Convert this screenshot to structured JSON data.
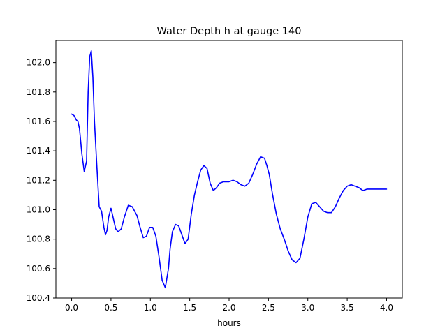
{
  "chart_data": {
    "type": "line",
    "title": "Water Depth h at gauge 140",
    "xlabel": "hours",
    "ylabel": "",
    "xlim": [
      -0.2,
      4.2
    ],
    "ylim": [
      100.4,
      102.15
    ],
    "x_ticks": [
      0.0,
      0.5,
      1.0,
      1.5,
      2.0,
      2.5,
      3.0,
      3.5,
      4.0
    ],
    "x_tick_labels": [
      "0.0",
      "0.5",
      "1.0",
      "1.5",
      "2.0",
      "2.5",
      "3.0",
      "3.5",
      "4.0"
    ],
    "y_ticks": [
      100.4,
      100.6,
      100.8,
      101.0,
      101.2,
      101.4,
      101.6,
      101.8,
      102.0
    ],
    "y_tick_labels": [
      "100.4",
      "100.6",
      "100.8",
      "101.0",
      "101.2",
      "101.4",
      "101.6",
      "101.8",
      "102.0"
    ],
    "grid": false,
    "series": [
      {
        "color": "#0000ff",
        "x": [
          0.0,
          0.03,
          0.06,
          0.08,
          0.1,
          0.13,
          0.16,
          0.19,
          0.21,
          0.23,
          0.25,
          0.27,
          0.29,
          0.32,
          0.35,
          0.38,
          0.41,
          0.43,
          0.45,
          0.47,
          0.5,
          0.53,
          0.56,
          0.59,
          0.63,
          0.67,
          0.72,
          0.77,
          0.8,
          0.83,
          0.87,
          0.91,
          0.95,
          0.99,
          1.03,
          1.07,
          1.11,
          1.15,
          1.19,
          1.23,
          1.25,
          1.28,
          1.32,
          1.36,
          1.4,
          1.44,
          1.48,
          1.52,
          1.56,
          1.6,
          1.64,
          1.68,
          1.72,
          1.76,
          1.8,
          1.84,
          1.88,
          1.93,
          2.0,
          2.05,
          2.1,
          2.15,
          2.2,
          2.25,
          2.3,
          2.35,
          2.4,
          2.45,
          2.48,
          2.51,
          2.55,
          2.6,
          2.65,
          2.7,
          2.75,
          2.8,
          2.85,
          2.9,
          2.95,
          3.0,
          3.05,
          3.1,
          3.15,
          3.2,
          3.25,
          3.3,
          3.35,
          3.4,
          3.45,
          3.5,
          3.55,
          3.6,
          3.65,
          3.7,
          3.75,
          3.8,
          3.85,
          3.9,
          3.95,
          4.0
        ],
        "y": [
          101.65,
          101.64,
          101.61,
          101.6,
          101.55,
          101.38,
          101.26,
          101.33,
          101.8,
          102.04,
          102.08,
          101.9,
          101.6,
          101.3,
          101.02,
          100.99,
          100.88,
          100.83,
          100.86,
          100.95,
          101.01,
          100.94,
          100.87,
          100.85,
          100.87,
          100.95,
          101.03,
          101.02,
          100.99,
          100.96,
          100.88,
          100.81,
          100.82,
          100.88,
          100.88,
          100.82,
          100.68,
          100.52,
          100.47,
          100.6,
          100.73,
          100.85,
          100.9,
          100.89,
          100.83,
          100.77,
          100.8,
          100.97,
          101.1,
          101.19,
          101.27,
          101.3,
          101.28,
          101.18,
          101.13,
          101.15,
          101.18,
          101.19,
          101.19,
          101.2,
          101.19,
          101.17,
          101.16,
          101.18,
          101.24,
          101.31,
          101.36,
          101.35,
          101.3,
          101.24,
          101.11,
          100.97,
          100.87,
          100.8,
          100.72,
          100.66,
          100.64,
          100.67,
          100.8,
          100.95,
          101.04,
          101.05,
          101.02,
          100.99,
          100.98,
          100.98,
          101.02,
          101.08,
          101.13,
          101.16,
          101.17,
          101.16,
          101.15,
          101.13,
          101.14,
          101.14,
          101.14,
          101.14,
          101.14,
          101.14
        ]
      }
    ]
  }
}
